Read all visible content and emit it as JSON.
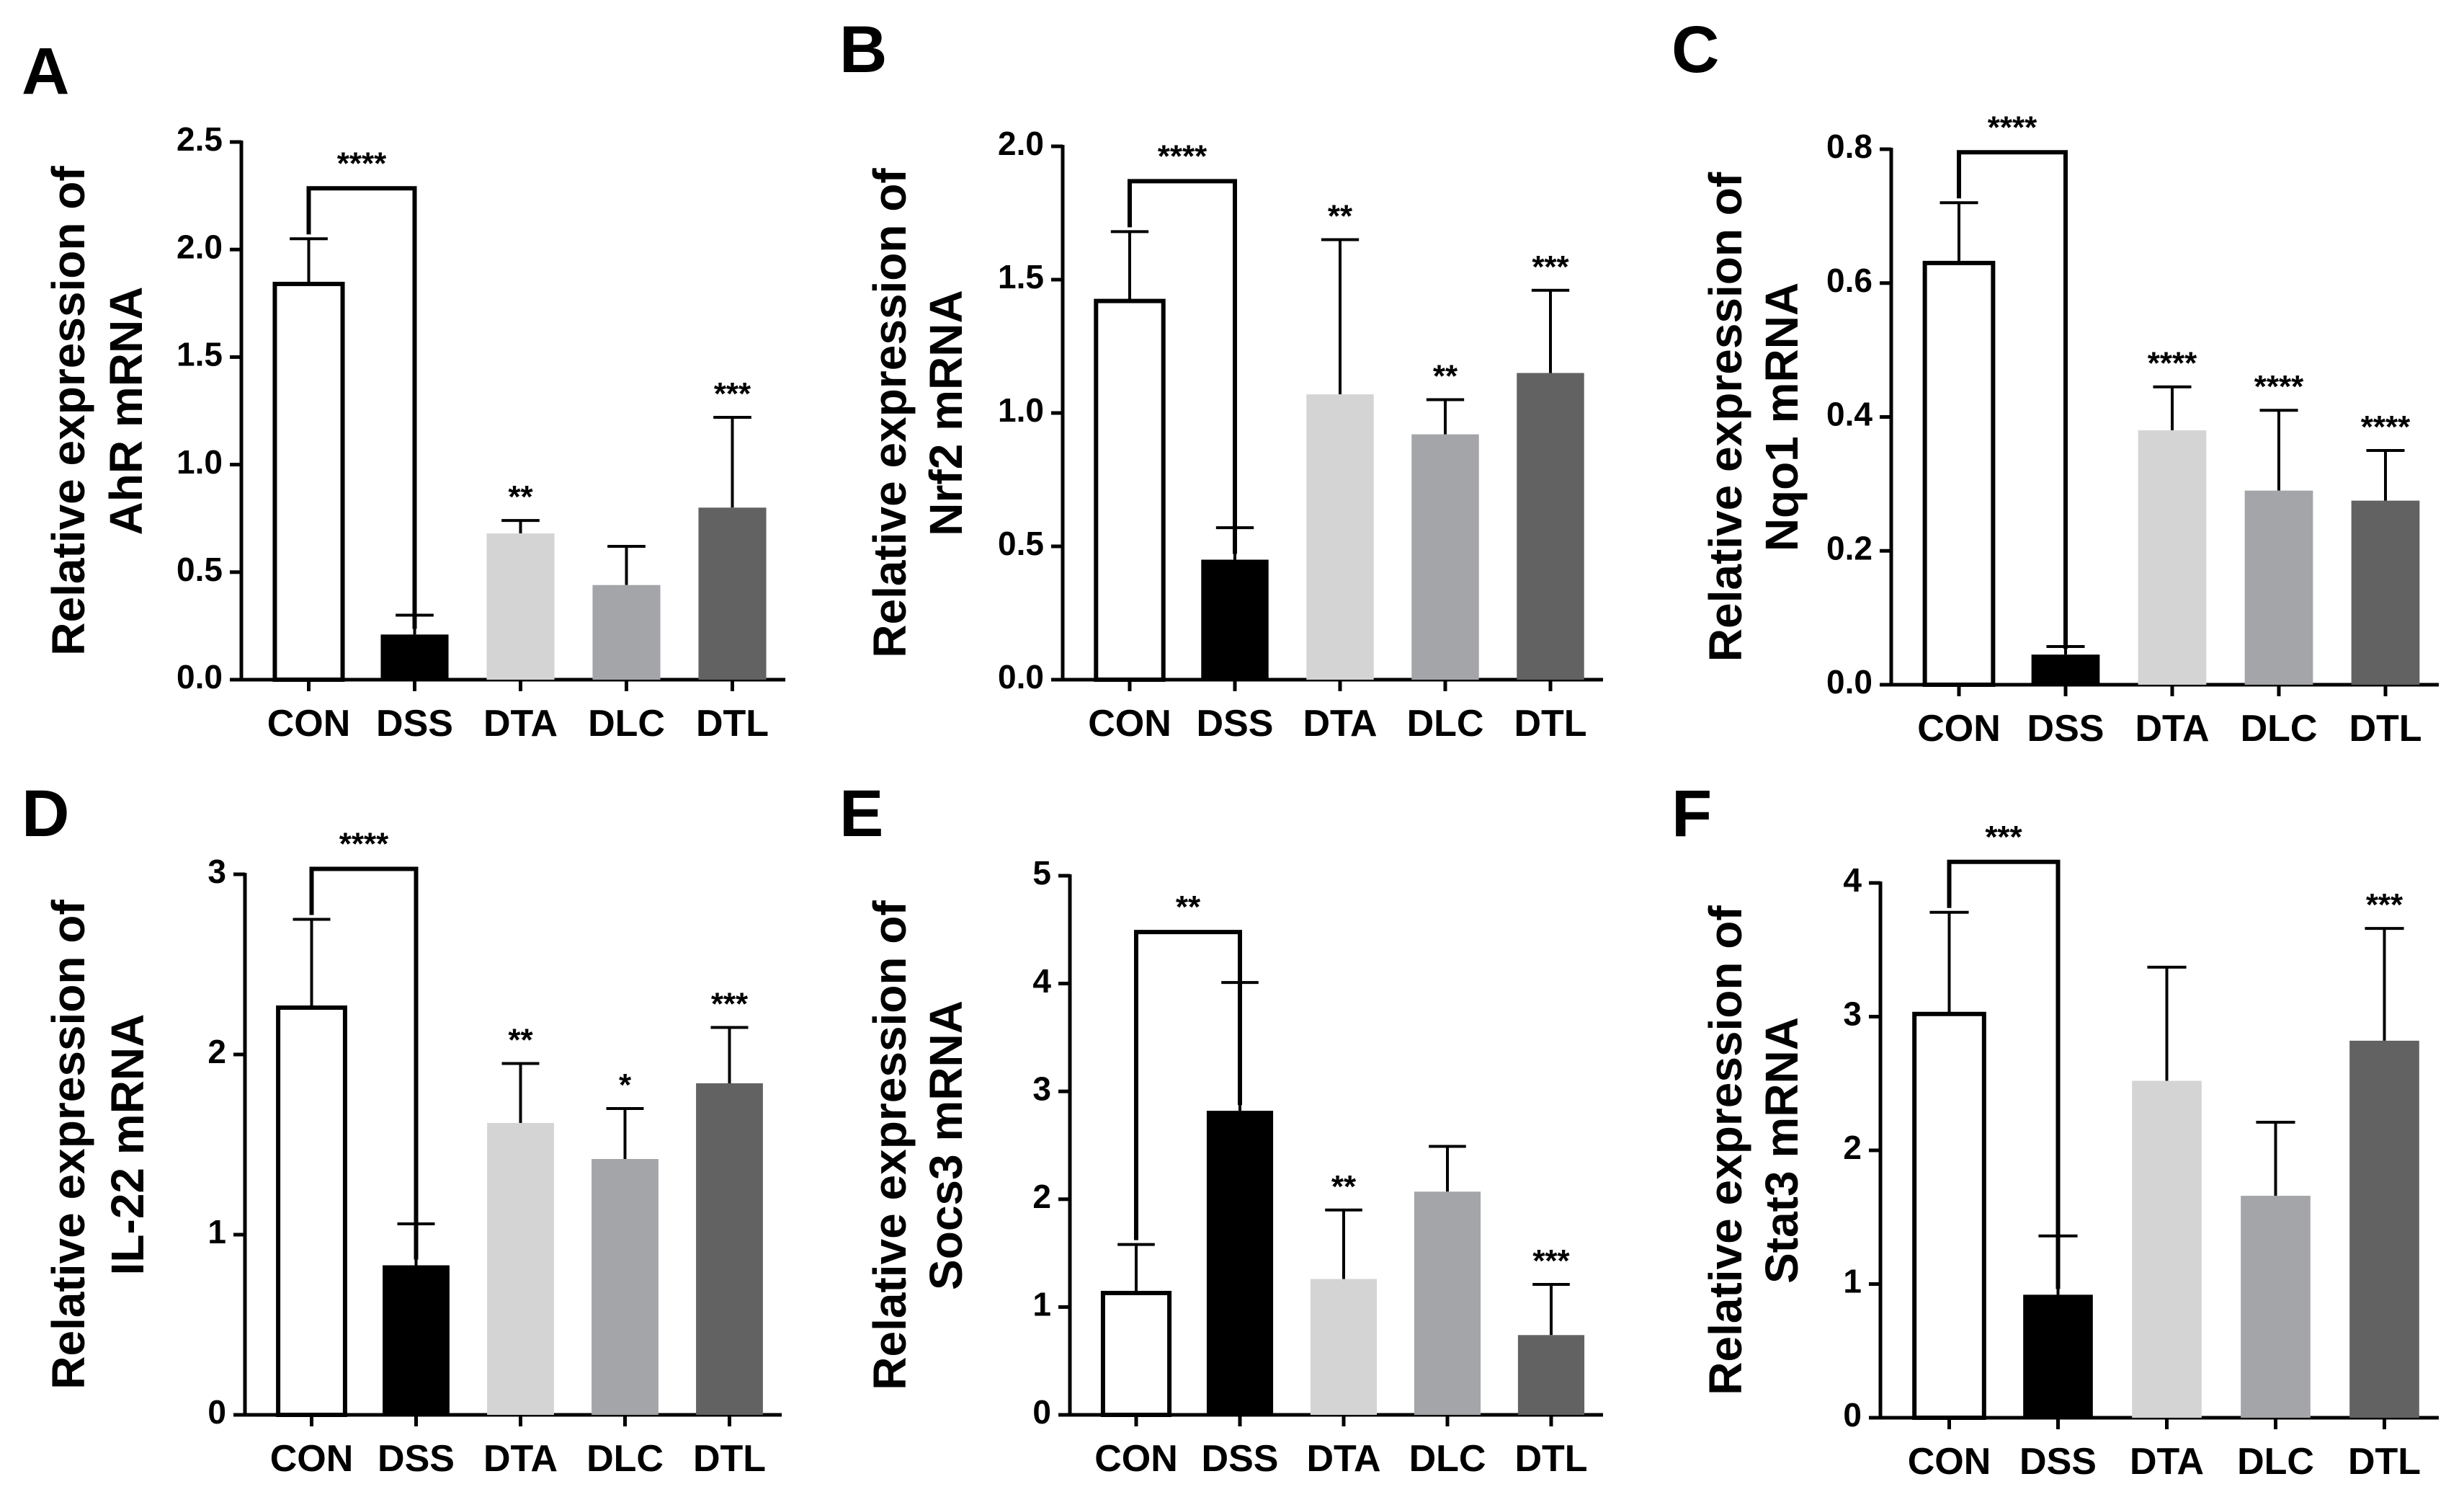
{
  "bar_colors": [
    "#ffffff",
    "#000000",
    "#d4d4d4",
    "#a4a5a8",
    "#626262"
  ],
  "chart_data": [
    {
      "panel": "A",
      "type": "bar",
      "ylabel": [
        "Relative expression of",
        "AhR mRNA"
      ],
      "categories": [
        "CON",
        "DSS",
        "DTA",
        "DLC",
        "DTL"
      ],
      "values": [
        1.84,
        0.21,
        0.68,
        0.44,
        0.8
      ],
      "errors": [
        0.21,
        0.09,
        0.06,
        0.18,
        0.42
      ],
      "ylim": [
        0,
        2.5
      ],
      "yticks": [
        "0.0",
        "0.5",
        "1.0",
        "1.5",
        "2.0",
        "2.5"
      ],
      "bracket": {
        "from": 0,
        "to": 1,
        "label": "****"
      },
      "stars": [
        "",
        "",
        "**",
        "",
        "***"
      ]
    },
    {
      "panel": "B",
      "type": "bar",
      "ylabel": [
        "Relative expression of",
        "Nrf2 mRNA"
      ],
      "categories": [
        "CON",
        "DSS",
        "DTA",
        "DLC",
        "DTL"
      ],
      "values": [
        1.42,
        0.45,
        1.07,
        0.92,
        1.15
      ],
      "errors": [
        0.26,
        0.12,
        0.58,
        0.13,
        0.31
      ],
      "ylim": [
        0,
        2.0
      ],
      "yticks": [
        "0.0",
        "0.5",
        "1.0",
        "1.5",
        "2.0"
      ],
      "bracket": {
        "from": 0,
        "to": 1,
        "label": "****"
      },
      "stars": [
        "",
        "",
        "**",
        "**",
        "***"
      ]
    },
    {
      "panel": "C",
      "type": "bar",
      "ylabel": [
        "Relative expression of",
        "Nqo1 mRNA"
      ],
      "categories": [
        "CON",
        "DSS",
        "DTA",
        "DLC",
        "DTL"
      ],
      "values": [
        0.63,
        0.045,
        0.38,
        0.29,
        0.275
      ],
      "errors": [
        0.09,
        0.012,
        0.065,
        0.12,
        0.075
      ],
      "ylim": [
        0,
        0.8
      ],
      "yticks": [
        "0.0",
        "0.2",
        "0.4",
        "0.6",
        "0.8"
      ],
      "bracket": {
        "from": 0,
        "to": 1,
        "label": "****"
      },
      "stars": [
        "",
        "",
        "****",
        "****",
        "****"
      ]
    },
    {
      "panel": "D",
      "type": "bar",
      "ylabel": [
        "Relative expression of",
        "IL-22 mRNA"
      ],
      "categories": [
        "CON",
        "DSS",
        "DTA",
        "DLC",
        "DTL"
      ],
      "values": [
        2.26,
        0.83,
        1.62,
        1.42,
        1.84
      ],
      "errors": [
        0.49,
        0.23,
        0.33,
        0.28,
        0.31
      ],
      "ylim": [
        0,
        3
      ],
      "yticks": [
        "0",
        "1",
        "2",
        "3"
      ],
      "bracket": {
        "from": 0,
        "to": 1,
        "label": "****"
      },
      "stars": [
        "",
        "",
        "**",
        "*",
        "***"
      ]
    },
    {
      "panel": "E",
      "type": "bar",
      "ylabel": [
        "Relative expression of",
        "Socs3 mRNA"
      ],
      "categories": [
        "CON",
        "DSS",
        "DTA",
        "DLC",
        "DTL"
      ],
      "values": [
        1.13,
        2.82,
        1.26,
        2.07,
        0.74
      ],
      "errors": [
        0.45,
        1.19,
        0.64,
        0.42,
        0.47
      ],
      "ylim": [
        0,
        5
      ],
      "yticks": [
        "0",
        "1",
        "2",
        "3",
        "4",
        "5"
      ],
      "bracket": {
        "from": 0,
        "to": 1,
        "label": "**"
      },
      "stars": [
        "",
        "",
        "**",
        "",
        "***"
      ]
    },
    {
      "panel": "F",
      "type": "bar",
      "ylabel": [
        "Relative expression of",
        "Stat3 mRNA"
      ],
      "categories": [
        "CON",
        "DSS",
        "DTA",
        "DLC",
        "DTL"
      ],
      "values": [
        3.02,
        0.92,
        2.52,
        1.66,
        2.82
      ],
      "errors": [
        0.76,
        0.44,
        0.85,
        0.55,
        0.84
      ],
      "ylim": [
        0,
        4
      ],
      "yticks": [
        "0",
        "1",
        "2",
        "3",
        "4"
      ],
      "bracket": {
        "from": 0,
        "to": 1,
        "label": "***"
      },
      "stars": [
        "",
        "",
        "",
        "",
        "***"
      ]
    }
  ]
}
